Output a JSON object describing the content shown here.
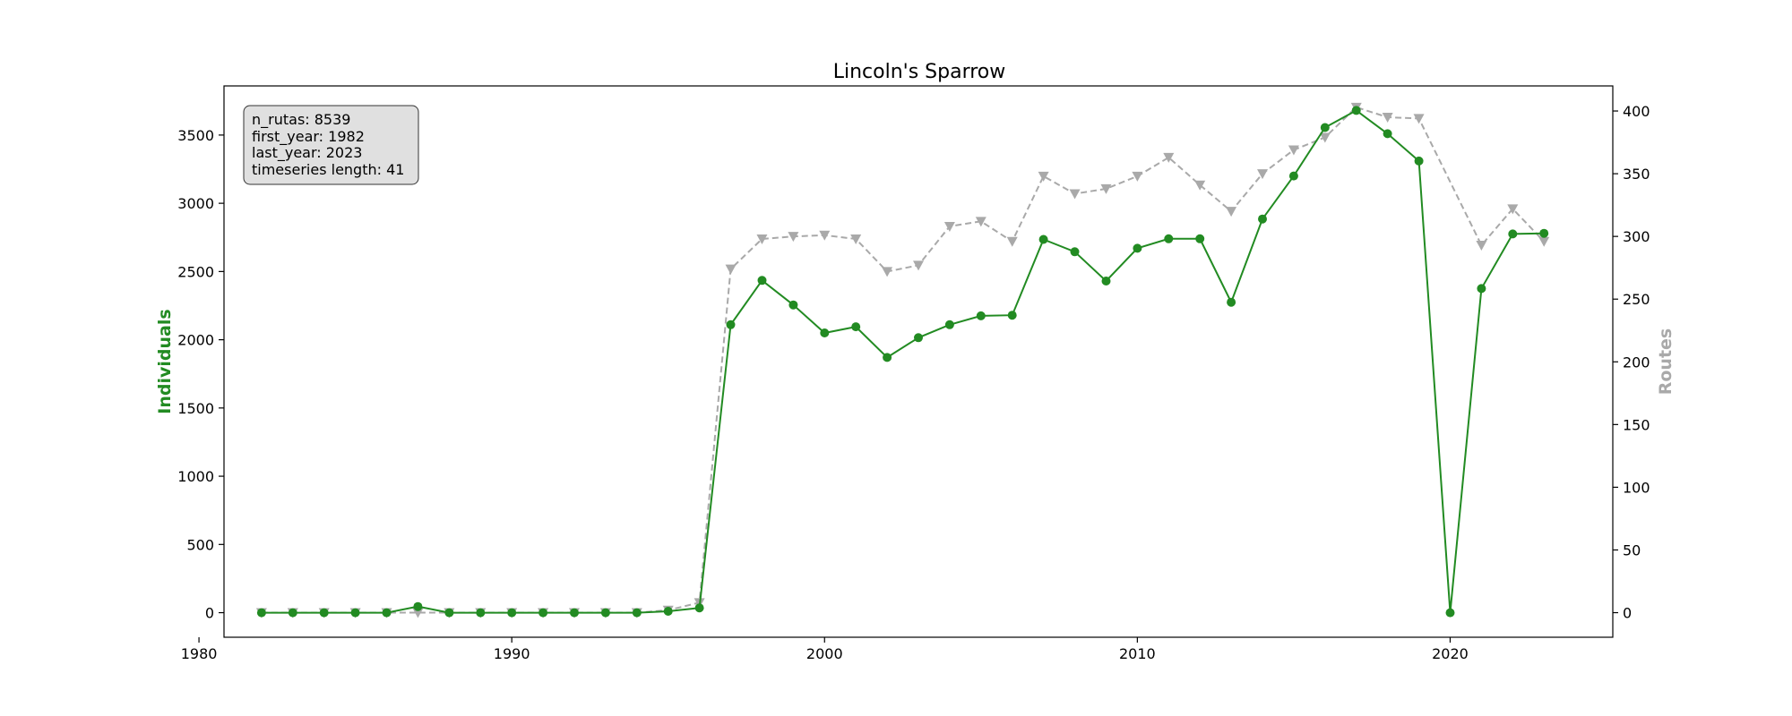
{
  "chart_data": {
    "type": "line",
    "title": "Lincoln's Sparrow",
    "xlabel": "",
    "x": [
      1982,
      1983,
      1984,
      1985,
      1986,
      1987,
      1988,
      1989,
      1990,
      1991,
      1992,
      1993,
      1994,
      1995,
      1996,
      1997,
      1998,
      1999,
      2000,
      2001,
      2002,
      2003,
      2004,
      2005,
      2006,
      2007,
      2008,
      2009,
      2010,
      2011,
      2012,
      2013,
      2014,
      2015,
      2016,
      2017,
      2018,
      2019,
      2020,
      2021,
      2022,
      2023
    ],
    "xlim": [
      1980.8,
      2025.2
    ],
    "xticks": [
      1980,
      1990,
      2000,
      2010,
      2020
    ],
    "y_left": {
      "label": "Individuals",
      "color": "#228B22",
      "lim": [
        -180,
        3860
      ],
      "ticks": [
        0,
        500,
        1000,
        1500,
        2000,
        2500,
        3000,
        3500
      ]
    },
    "y_right": {
      "label": "Routes",
      "color": "#A9A9A9",
      "lim": [
        -19.6,
        420
      ],
      "ticks": [
        0,
        50,
        100,
        150,
        200,
        250,
        300,
        350,
        400
      ]
    },
    "series": [
      {
        "name": "Individuals",
        "axis": "left",
        "color": "#228B22",
        "linestyle": "solid",
        "marker": "circle",
        "values": [
          0,
          0,
          0,
          0,
          0,
          45,
          0,
          0,
          0,
          0,
          0,
          0,
          0,
          10,
          35,
          2110,
          2435,
          2255,
          2050,
          2095,
          1870,
          2015,
          2110,
          2175,
          2180,
          2735,
          2645,
          2430,
          2670,
          2740,
          2740,
          2275,
          2885,
          3200,
          3555,
          3680,
          3510,
          3310,
          0,
          2375,
          2775,
          2780
        ]
      },
      {
        "name": "Routes",
        "axis": "right",
        "color": "#A9A9A9",
        "linestyle": "dashed",
        "marker": "triangle-down",
        "values": [
          0,
          0,
          0,
          0,
          0,
          0,
          0,
          0,
          0,
          0,
          0,
          0,
          0,
          2,
          8,
          274,
          298,
          300,
          301,
          298,
          272,
          277,
          308,
          312,
          296,
          348,
          334,
          338,
          348,
          363,
          341,
          320,
          350,
          369,
          379,
          403,
          395,
          394,
          null,
          293,
          322,
          296
        ]
      }
    ],
    "info_box": {
      "position": "top-left",
      "lines": [
        "n_rutas: 8539",
        "first_year: 1982",
        "last_year: 2023",
        "timeseries length: 41"
      ]
    },
    "grid": false,
    "legend": "none"
  }
}
